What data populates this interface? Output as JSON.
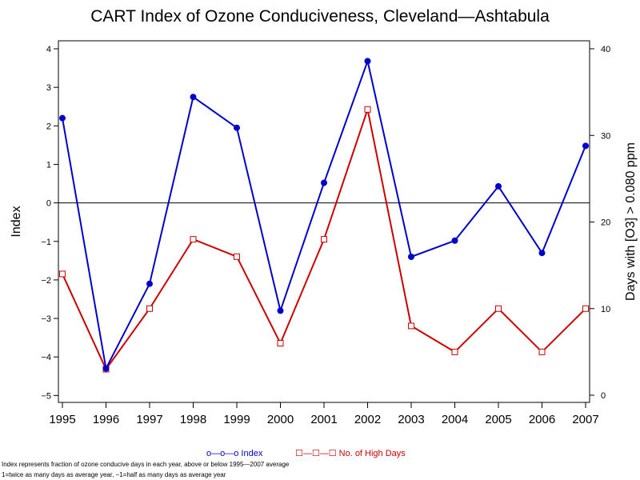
{
  "chart_data": {
    "type": "line",
    "title": "CART Index of Ozone Conduciveness, Cleveland—Ashtabula",
    "categories": [
      "1995",
      "1996",
      "1997",
      "1998",
      "1999",
      "2000",
      "2001",
      "2002",
      "2003",
      "2004",
      "2005",
      "2006",
      "2007"
    ],
    "ylabel_left": "Index",
    "ylabel_right": "Days with [O3] > 0.080 ppm",
    "ylim_left": [
      -5,
      4
    ],
    "yticks_left": [
      4,
      3,
      2,
      1,
      0,
      -1,
      -2,
      -3,
      -4,
      -5
    ],
    "ylim_right": [
      0,
      40
    ],
    "yticks_right": [
      40,
      30,
      20,
      10,
      0
    ],
    "reference_line_left": 0,
    "series": [
      {
        "name": "Index",
        "axis": "left",
        "color": "#0000cc",
        "marker": "filled-circle",
        "legend_label": "o—o—o  Index",
        "values": [
          2.2,
          -4.3,
          -2.1,
          2.75,
          1.95,
          -2.8,
          0.52,
          3.68,
          -1.4,
          -0.98,
          0.43,
          -1.3,
          1.48
        ]
      },
      {
        "name": "No. of High Days",
        "axis": "right",
        "color": "#cc0000",
        "marker": "open-square",
        "legend_label": "☐—☐—☐  No. of High Days",
        "values": [
          14,
          3,
          10,
          18,
          16,
          6,
          18,
          33,
          8,
          5,
          10,
          5,
          10
        ]
      }
    ]
  },
  "footnotes": {
    "line1": "Index represents fraction of ozone conducive days in each year, above or below 1995—2007 average",
    "line2": "1=twice as many days as average year, −1=half as many days as average year"
  },
  "colors": {
    "index_series": "#0000cc",
    "days_series": "#cc0000",
    "axis": "#000000"
  }
}
